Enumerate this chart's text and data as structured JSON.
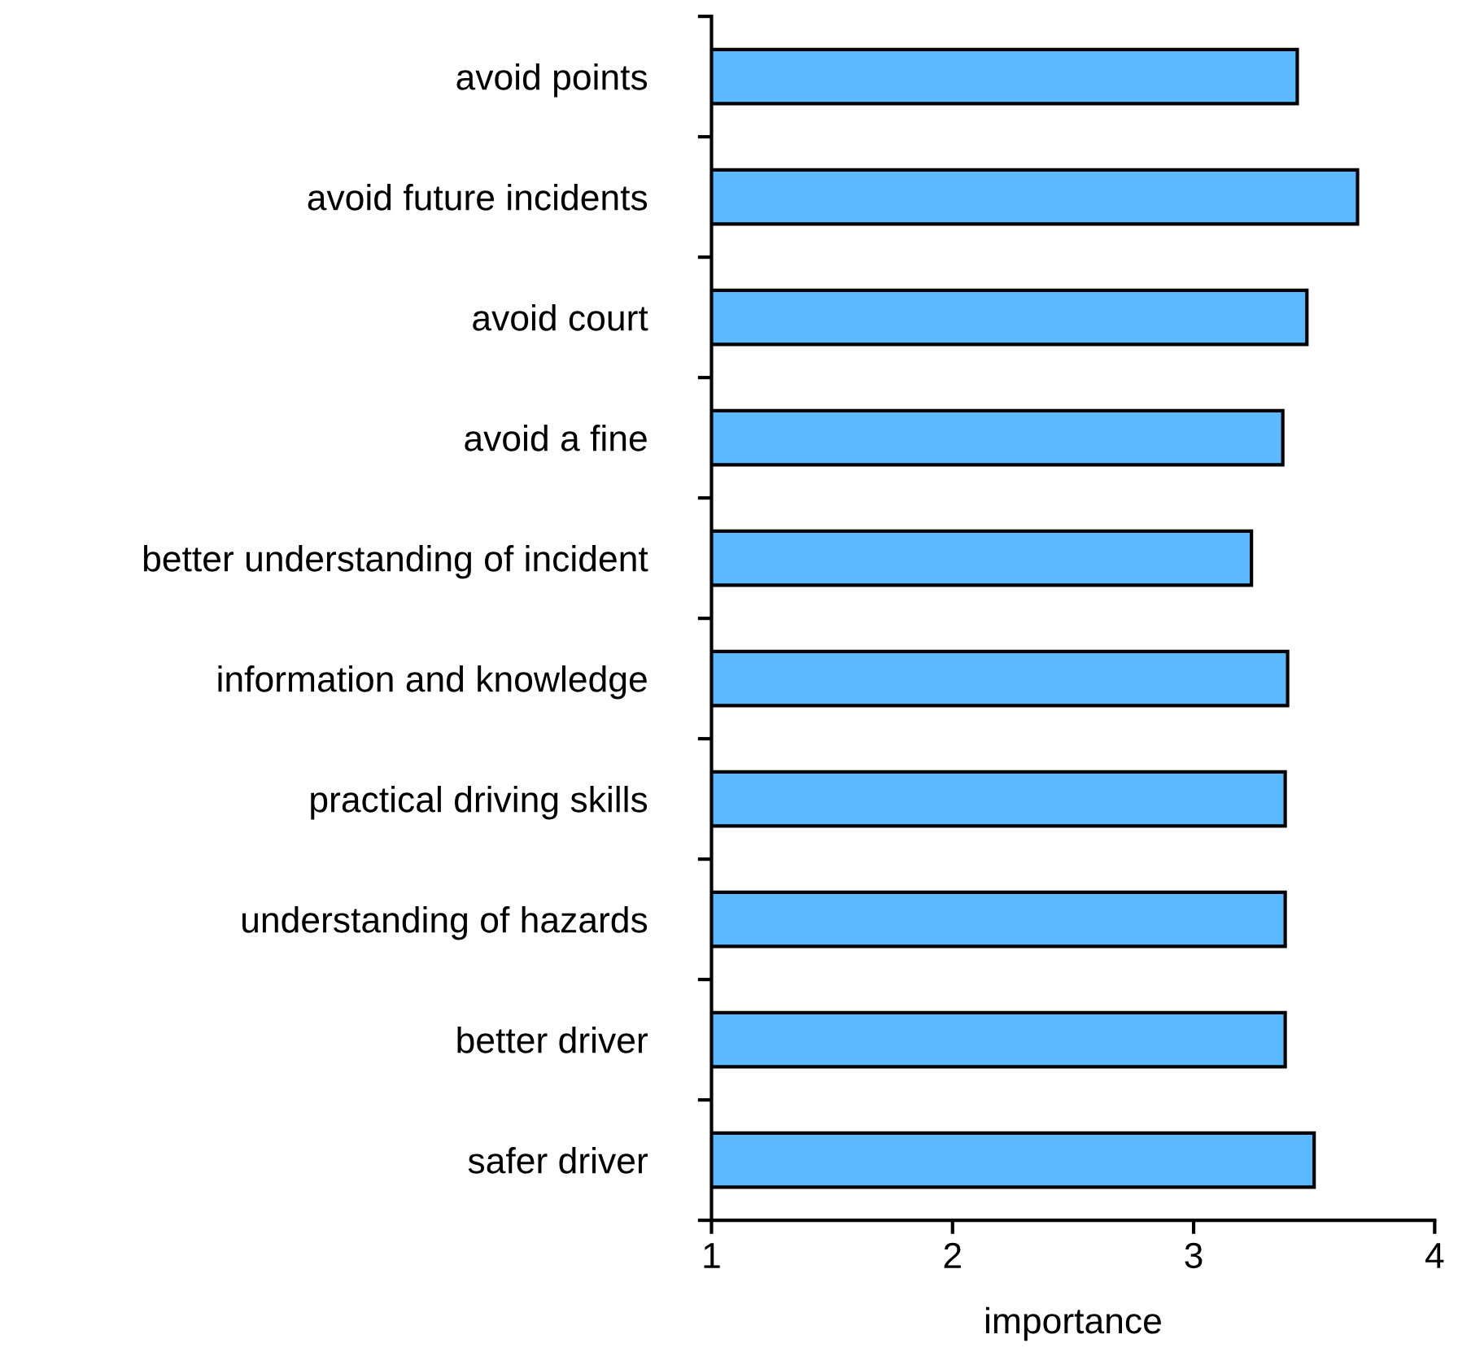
{
  "chart_data": {
    "type": "bar",
    "orientation": "horizontal",
    "xlabel": "importance",
    "categories": [
      "avoid points",
      "avoid future incidents",
      "avoid court",
      "avoid a fine",
      "better understanding of incident",
      "information and knowledge",
      "practical driving skills",
      "understanding of hazards",
      "better driver",
      "safer driver"
    ],
    "values": [
      3.43,
      3.68,
      3.47,
      3.37,
      3.24,
      3.39,
      3.38,
      3.38,
      3.38,
      3.5
    ],
    "color": "#5cb8ff",
    "xlim": [
      1,
      4
    ],
    "xticks": [
      1,
      2,
      3,
      4
    ],
    "grid": false,
    "legend": false
  }
}
